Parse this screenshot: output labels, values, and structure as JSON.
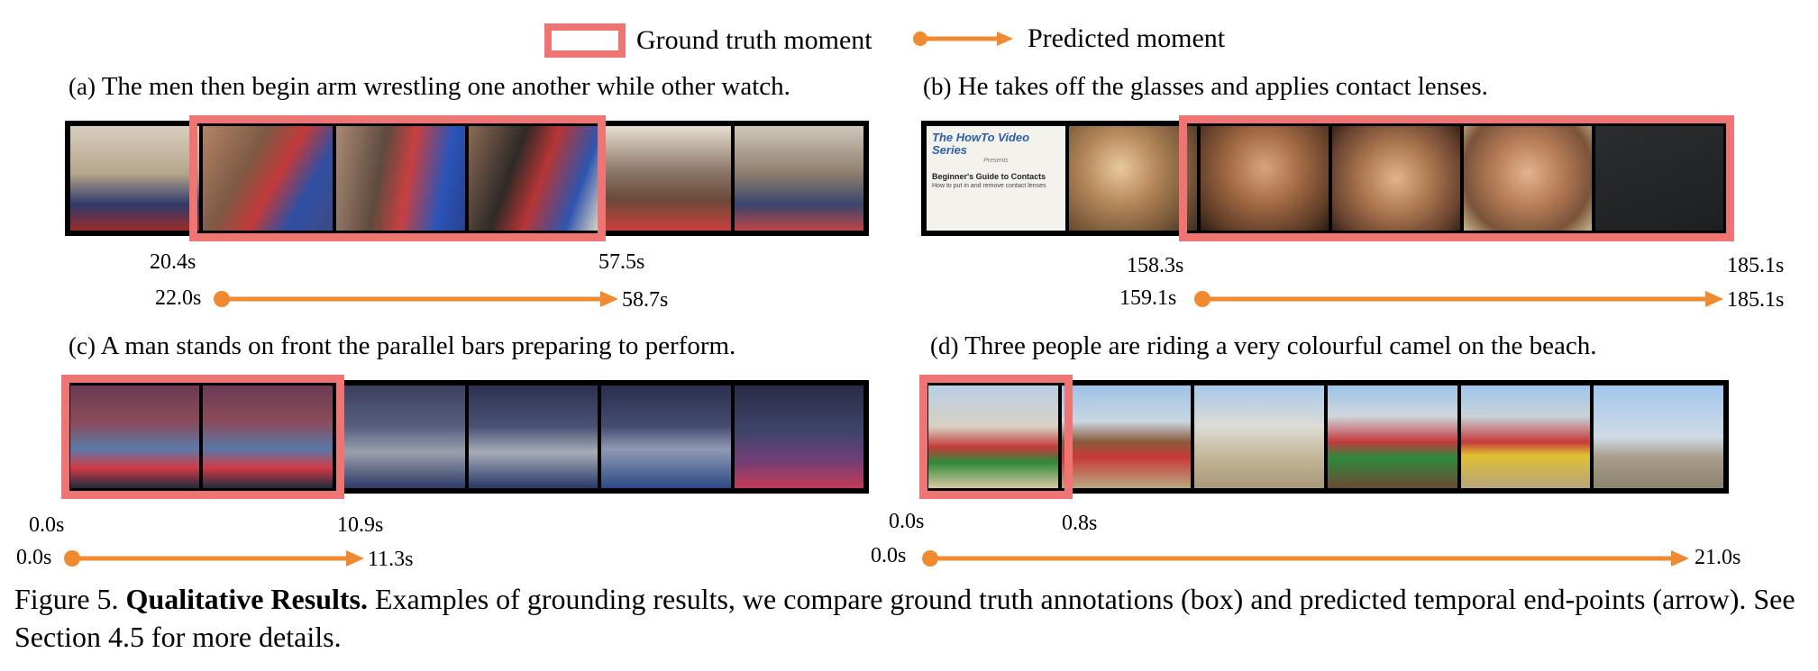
{
  "legend": {
    "ground_truth_label": "Ground truth moment",
    "predicted_label": "Predicted moment",
    "colors": {
      "ground_truth": "#ef7474",
      "predicted": "#f08a30"
    }
  },
  "examples": [
    {
      "label": "(a)",
      "sentence": "The men then begin arm wrestling one another while other watch.",
      "gt_start": "20.4s",
      "gt_end": "57.5s",
      "pred_start": "22.0s",
      "pred_end": "58.7s"
    },
    {
      "label": "(b)",
      "sentence": "He takes off the glasses and applies contact lenses.",
      "gt_start": "158.3s",
      "gt_end": "185.1s",
      "pred_start": "159.1s",
      "pred_end": "185.1s",
      "title_card": {
        "series": "The HowTo Video Series",
        "presents": "Presents",
        "heading": "Beginner's Guide to Contacts",
        "subheading": "How to put in and remove contact lenses"
      }
    },
    {
      "label": "(c)",
      "sentence": "A man stands on front the parallel bars preparing to perform.",
      "gt_start": "0.0s",
      "gt_end": "10.9s",
      "pred_start": "0.0s",
      "pred_end": "11.3s"
    },
    {
      "label": "(d)",
      "sentence": "Three people are riding a very colourful camel on the beach.",
      "gt_start": "0.0s",
      "gt_end": "0.8s",
      "pred_start": "0.0s",
      "pred_end": "21.0s"
    }
  ],
  "caption": {
    "figure": "Figure 5.",
    "title": "Qualitative Results.",
    "text": "Examples of grounding results, we compare ground truth annotations (box) and predicted temporal end-points (arrow). See Section 4.5 for more details."
  }
}
